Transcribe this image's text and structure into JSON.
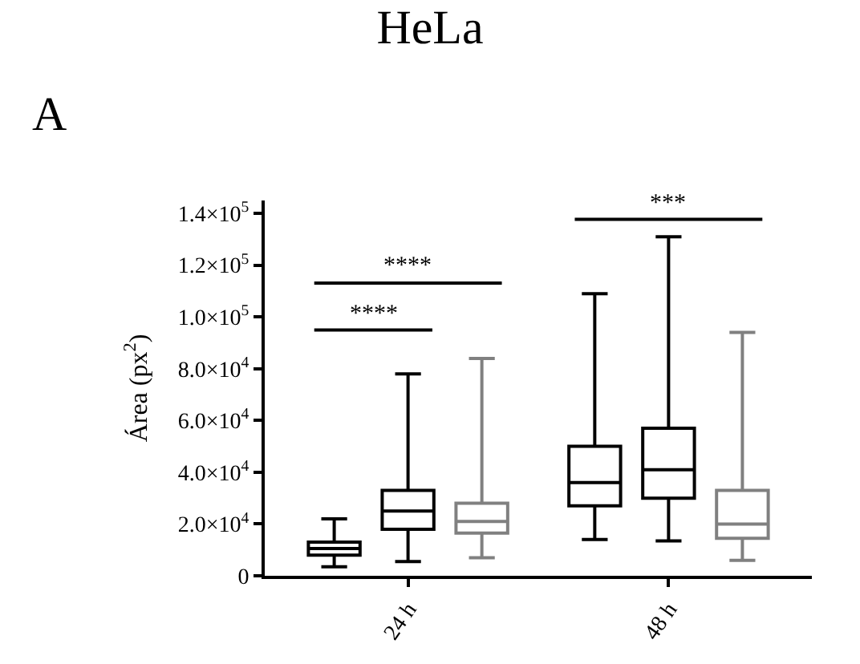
{
  "chart_data": {
    "type": "box",
    "title": "HeLa",
    "ylabel": "Área (px$^{2}$)",
    "categories": [
      "24 h",
      "48 h"
    ],
    "series": [
      {
        "color": "#000000",
        "boxes": [
          {
            "low": 3500,
            "q1": 8000,
            "median": 10500,
            "q3": 13000,
            "high": 22000
          },
          {
            "low": 14000,
            "q1": 27000,
            "median": 36000,
            "q3": 50000,
            "high": 109000
          }
        ]
      },
      {
        "color": "#000000",
        "boxes": [
          {
            "low": 5500,
            "q1": 18000,
            "median": 25000,
            "q3": 33000,
            "high": 78000
          },
          {
            "low": 13500,
            "q1": 30000,
            "median": 41000,
            "q3": 57000,
            "high": 131000
          }
        ]
      },
      {
        "color": "#808080",
        "boxes": [
          {
            "low": 7000,
            "q1": 16500,
            "median": 21000,
            "q3": 28000,
            "high": 84000
          },
          {
            "low": 6000,
            "q1": 14500,
            "median": 20000,
            "q3": 33000,
            "high": 94000
          }
        ]
      }
    ],
    "ylim": [
      0,
      145000
    ],
    "yticks": [
      0,
      {
        "value": 20000,
        "label": "2.0×10$^{4}$"
      },
      {
        "value": 40000,
        "label": "4.0×10$^{4}$"
      },
      {
        "value": 60000,
        "label": "6.0×10$^{4}$"
      },
      {
        "value": 80000,
        "label": "8.0×10$^{4}$"
      },
      {
        "value": 100000,
        "label": "1.0×10$^{5}$"
      },
      {
        "value": 120000,
        "label": "1.2×10$^{5}$"
      },
      {
        "value": 140000,
        "label": "1.4×10$^{5}$"
      }
    ],
    "annotations": [
      "A",
      "****",
      "****",
      "***"
    ],
    "legend": false
  }
}
